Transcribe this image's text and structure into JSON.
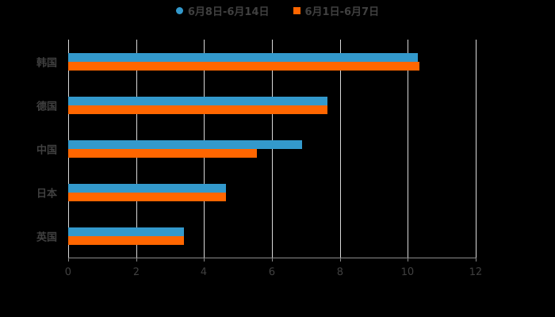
{
  "chart_data": {
    "type": "bar",
    "orientation": "horizontal",
    "title": "",
    "categories": [
      "韩国",
      "德国",
      "中国",
      "日本",
      "英国"
    ],
    "series": [
      {
        "name": "6月8日-6月14日",
        "color": "#3399cc",
        "values": [
          10.3,
          7.64,
          6.88,
          4.65,
          3.41
        ]
      },
      {
        "name": "6月1日-6月7日",
        "color": "#ff6600",
        "values": [
          10.35,
          7.64,
          5.55,
          4.65,
          3.41
        ]
      }
    ],
    "xlabel": "",
    "ylabel": "",
    "xlim": [
      0,
      12
    ],
    "xticks": [
      "0",
      "2",
      "4",
      "6",
      "8",
      "10",
      "12"
    ],
    "grid": "vertical",
    "legend_position": "top"
  },
  "legend": [
    {
      "label": "6月8日-6月14日",
      "color": "#3399cc"
    },
    {
      "label": "6月1日-6月7日",
      "color": "#ff6600"
    }
  ]
}
